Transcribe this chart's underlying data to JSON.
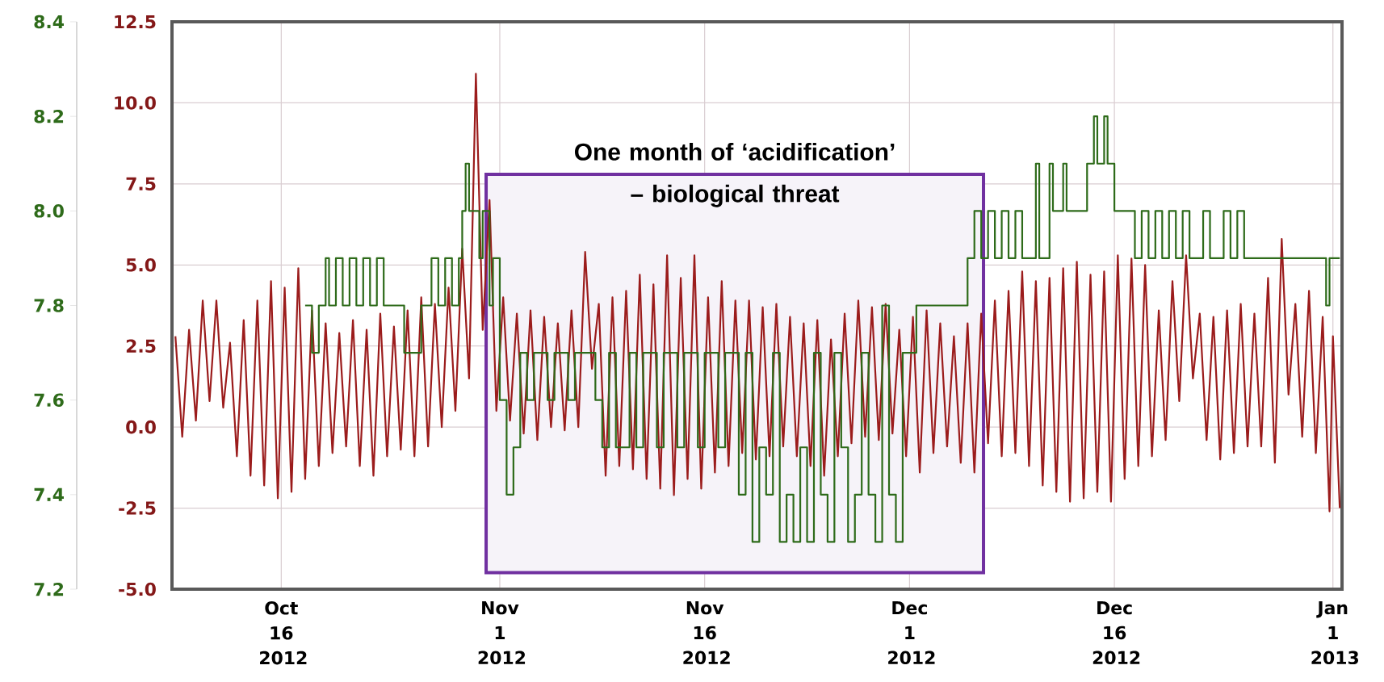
{
  "chart_data": {
    "type": "line",
    "grid": true,
    "xlim": [
      "2012-10-08",
      "2013-01-01T16:00"
    ],
    "xticks": [
      {
        "value": "2012-10-16",
        "label": "Oct 16 2012"
      },
      {
        "value": "2012-11-01",
        "label": "Nov 1 2012"
      },
      {
        "value": "2012-11-16",
        "label": "Nov 16 2012"
      },
      {
        "value": "2012-12-01",
        "label": "Dec 1 2012"
      },
      {
        "value": "2012-12-16",
        "label": "Dec 16 2012"
      },
      {
        "value": "2013-01-01",
        "label": "Jan 1 2013"
      }
    ],
    "ylim": [
      -5,
      12.5
    ],
    "yticks": [
      {
        "value": -5,
        "label": "-5.0"
      },
      -2.5,
      {
        "value": 0,
        "label": "0.0"
      },
      2.5,
      {
        "value": 5,
        "label": "5.0"
      },
      7.5,
      {
        "value": 10,
        "label": "10.0"
      },
      12.5
    ],
    "y2lim": [
      7.2,
      8.4
    ],
    "y2ticks": [
      7.2,
      7.4,
      7.6,
      7.8,
      {
        "value": 8,
        "label": "8.0"
      },
      8.2,
      8.4
    ],
    "bands": [
      {
        "axis": "x",
        "from": "2012-10-31",
        "to": "2012-12-06T10:00",
        "label": "One month of ‘acidification’ – biological threat",
        "color": "#7030a0"
      }
    ],
    "series": [
      {
        "color": "#9b1c1c",
        "x": [
          "2012-10-08T06:00",
          "2012-10-08T18:00",
          "2012-10-09T06:00",
          "2012-10-09T18:00",
          "2012-10-10T06:00",
          "2012-10-10T18:00",
          "2012-10-11T06:00",
          "2012-10-11T18:00",
          "2012-10-12T06:00",
          "2012-10-12T18:00",
          "2012-10-13T06:00",
          "2012-10-13T18:00",
          "2012-10-14T06:00",
          "2012-10-14T18:00",
          "2012-10-15T06:00",
          "2012-10-15T18:00",
          "2012-10-16T06:00",
          "2012-10-16T18:00",
          "2012-10-17T06:00",
          "2012-10-17T18:00",
          "2012-10-18T06:00",
          "2012-10-18T18:00",
          "2012-10-19T06:00",
          "2012-10-19T18:00",
          "2012-10-20T06:00",
          "2012-10-20T18:00",
          "2012-10-21T06:00",
          "2012-10-21T18:00",
          "2012-10-22T06:00",
          "2012-10-22T18:00",
          "2012-10-23T06:00",
          "2012-10-23T18:00",
          "2012-10-24T06:00",
          "2012-10-24T18:00",
          "2012-10-25T06:00",
          "2012-10-25T18:00",
          "2012-10-26T06:00",
          "2012-10-26T18:00",
          "2012-10-27T06:00",
          "2012-10-27T18:00",
          "2012-10-28T06:00",
          "2012-10-28T18:00",
          "2012-10-29T06:00",
          "2012-10-29T18:00",
          "2012-10-30T06:00",
          "2012-10-30T18:00",
          "2012-10-31T06:00",
          "2012-10-31T18:00",
          "2012-11-01T06:00",
          "2012-11-01T18:00",
          "2012-11-02T06:00",
          "2012-11-02T18:00",
          "2012-11-03T06:00",
          "2012-11-03T18:00",
          "2012-11-04T06:00",
          "2012-11-04T18:00",
          "2012-11-05T06:00",
          "2012-11-05T18:00",
          "2012-11-06T06:00",
          "2012-11-06T18:00",
          "2012-11-07T06:00",
          "2012-11-07T18:00",
          "2012-11-08T06:00",
          "2012-11-08T18:00",
          "2012-11-09T06:00",
          "2012-11-09T18:00",
          "2012-11-10T06:00",
          "2012-11-10T18:00",
          "2012-11-11T06:00",
          "2012-11-11T18:00",
          "2012-11-12T06:00",
          "2012-11-12T18:00",
          "2012-11-13T06:00",
          "2012-11-13T18:00",
          "2012-11-14T06:00",
          "2012-11-14T18:00",
          "2012-11-15T06:00",
          "2012-11-15T18:00",
          "2012-11-16T06:00",
          "2012-11-16T18:00",
          "2012-11-17T06:00",
          "2012-11-17T18:00",
          "2012-11-18T06:00",
          "2012-11-18T18:00",
          "2012-11-19T06:00",
          "2012-11-19T18:00",
          "2012-11-20T06:00",
          "2012-11-20T18:00",
          "2012-11-21T06:00",
          "2012-11-21T18:00",
          "2012-11-22T06:00",
          "2012-11-22T18:00",
          "2012-11-23T06:00",
          "2012-11-23T18:00",
          "2012-11-24T06:00",
          "2012-11-24T18:00",
          "2012-11-25T06:00",
          "2012-11-25T18:00",
          "2012-11-26T06:00",
          "2012-11-26T18:00",
          "2012-11-27T06:00",
          "2012-11-27T18:00",
          "2012-11-28T06:00",
          "2012-11-28T18:00",
          "2012-11-29T06:00",
          "2012-11-29T18:00",
          "2012-11-30T06:00",
          "2012-11-30T18:00",
          "2012-12-01T06:00",
          "2012-12-01T18:00",
          "2012-12-02T06:00",
          "2012-12-02T18:00",
          "2012-12-03T06:00",
          "2012-12-03T18:00",
          "2012-12-04T06:00",
          "2012-12-04T18:00",
          "2012-12-05T06:00",
          "2012-12-05T18:00",
          "2012-12-06T06:00",
          "2012-12-06T18:00",
          "2012-12-07T06:00",
          "2012-12-07T18:00",
          "2012-12-08T06:00",
          "2012-12-08T18:00",
          "2012-12-09T06:00",
          "2012-12-09T18:00",
          "2012-12-10T06:00",
          "2012-12-10T18:00",
          "2012-12-11T06:00",
          "2012-12-11T18:00",
          "2012-12-12T06:00",
          "2012-12-12T18:00",
          "2012-12-13T06:00",
          "2012-12-13T18:00",
          "2012-12-14T06:00",
          "2012-12-14T18:00",
          "2012-12-15T06:00",
          "2012-12-15T18:00",
          "2012-12-16T06:00",
          "2012-12-16T18:00",
          "2012-12-17T06:00",
          "2012-12-17T18:00",
          "2012-12-18T06:00",
          "2012-12-18T18:00",
          "2012-12-19T06:00",
          "2012-12-19T18:00",
          "2012-12-20T06:00",
          "2012-12-20T18:00",
          "2012-12-21T06:00",
          "2012-12-21T18:00",
          "2012-12-22T06:00",
          "2012-12-22T18:00",
          "2012-12-23T06:00",
          "2012-12-23T18:00",
          "2012-12-24T06:00",
          "2012-12-24T18:00",
          "2012-12-25T06:00",
          "2012-12-25T18:00",
          "2012-12-26T06:00",
          "2012-12-26T18:00",
          "2012-12-27T06:00",
          "2012-12-27T18:00",
          "2012-12-28T06:00",
          "2012-12-28T18:00",
          "2012-12-29T06:00",
          "2012-12-29T18:00",
          "2012-12-30T06:00",
          "2012-12-30T18:00",
          "2012-12-31T06:00",
          "2012-12-31T18:00",
          "2013-01-01T00:00",
          "2013-01-01T12:00"
        ],
        "values": [
          2.8,
          -0.3,
          3.0,
          0.2,
          3.9,
          0.8,
          3.9,
          0.6,
          2.6,
          -0.9,
          3.3,
          -1.5,
          3.9,
          -1.8,
          4.5,
          -2.2,
          4.3,
          -2.0,
          4.9,
          -1.6,
          3.6,
          -1.2,
          3.2,
          -0.8,
          2.9,
          -0.6,
          3.3,
          -1.2,
          3.0,
          -1.5,
          3.5,
          -0.9,
          3.1,
          -0.7,
          3.6,
          -0.9,
          4.0,
          -0.6,
          3.8,
          0.0,
          4.3,
          0.5,
          5.5,
          1.5,
          10.9,
          3.0,
          7.0,
          0.5,
          4.0,
          0.2,
          3.5,
          -0.2,
          3.6,
          -0.4,
          3.4,
          0.0,
          3.2,
          -0.1,
          3.6,
          0.0,
          5.4,
          1.8,
          3.8,
          -1.5,
          4.0,
          -1.2,
          4.2,
          -1.3,
          4.7,
          -1.6,
          4.4,
          -1.9,
          5.3,
          -2.1,
          4.6,
          -1.6,
          5.3,
          -1.9,
          4.0,
          -1.4,
          4.5,
          -1.2,
          3.9,
          -0.8,
          3.9,
          -1.0,
          3.7,
          -0.9,
          3.8,
          -0.6,
          3.4,
          -0.9,
          3.2,
          -1.2,
          3.3,
          -1.5,
          2.7,
          -0.9,
          3.5,
          -0.5,
          3.9,
          -0.3,
          3.7,
          -0.4,
          3.8,
          -0.2,
          3.0,
          -0.9,
          3.4,
          -1.4,
          3.6,
          -0.8,
          3.2,
          -0.6,
          2.8,
          -1.1,
          3.2,
          -1.4,
          3.5,
          -0.5,
          3.9,
          -0.9,
          4.2,
          -0.8,
          4.8,
          -1.2,
          4.5,
          -1.8,
          4.6,
          -2.0,
          4.9,
          -2.3,
          5.1,
          -2.2,
          4.7,
          -2.0,
          4.8,
          -2.3,
          5.3,
          -1.6,
          5.2,
          -1.2,
          5.0,
          -0.9,
          3.6,
          -0.4,
          4.5,
          0.8,
          5.3,
          1.5,
          3.5,
          -0.4,
          3.4,
          -1.0,
          3.6,
          -0.8,
          3.8,
          -0.6,
          3.5,
          -0.6,
          4.6,
          -1.1,
          5.8,
          1.0,
          3.8,
          -0.3,
          4.2,
          -0.8,
          3.4,
          -2.6,
          2.8,
          -2.5
        ]
      },
      {
        "color": "#2e6b1a",
        "type": "step",
        "axis": "y2",
        "x": [
          "2012-10-17T18:00",
          "2012-10-18T06:00",
          "2012-10-18T18:00",
          "2012-10-19T06:00",
          "2012-10-19T12:00",
          "2012-10-20T00:00",
          "2012-10-20T12:00",
          "2012-10-21T00:00",
          "2012-10-21T12:00",
          "2012-10-22T00:00",
          "2012-10-22T12:00",
          "2012-10-23T00:00",
          "2012-10-23T12:00",
          "2012-10-25T00:00",
          "2012-10-26T06:00",
          "2012-10-27T00:00",
          "2012-10-27T12:00",
          "2012-10-28T00:00",
          "2012-10-28T12:00",
          "2012-10-29T00:00",
          "2012-10-29T06:00",
          "2012-10-29T12:00",
          "2012-10-29T18:00",
          "2012-10-30T12:00",
          "2012-10-30T18:00",
          "2012-10-31T06:00",
          "2012-10-31T12:00",
          "2012-11-01T00:00",
          "2012-11-01T12:00",
          "2012-11-02T00:00",
          "2012-11-02T12:00",
          "2012-11-03T00:00",
          "2012-11-03T12:00",
          "2012-11-04T12:00",
          "2012-11-05T00:00",
          "2012-11-06T00:00",
          "2012-11-06T12:00",
          "2012-11-08T00:00",
          "2012-11-08T12:00",
          "2012-11-09T00:00",
          "2012-11-09T12:00",
          "2012-11-10T12:00",
          "2012-11-11T00:00",
          "2012-11-11T12:00",
          "2012-11-12T12:00",
          "2012-11-13T00:00",
          "2012-11-14T00:00",
          "2012-11-14T12:00",
          "2012-11-15T12:00",
          "2012-11-16T00:00",
          "2012-11-17T00:00",
          "2012-11-17T12:00",
          "2012-11-18T12:00",
          "2012-11-19T00:00",
          "2012-11-19T12:00",
          "2012-11-20T00:00",
          "2012-11-20T12:00",
          "2012-11-21T00:00",
          "2012-11-21T12:00",
          "2012-11-22T00:00",
          "2012-11-22T12:00",
          "2012-11-23T00:00",
          "2012-11-23T12:00",
          "2012-11-24T00:00",
          "2012-11-24T12:00",
          "2012-11-25T00:00",
          "2012-11-25T12:00",
          "2012-11-26T00:00",
          "2012-11-26T12:00",
          "2012-11-27T00:00",
          "2012-11-27T12:00",
          "2012-11-28T00:00",
          "2012-11-28T12:00",
          "2012-11-29T00:00",
          "2012-11-29T12:00",
          "2012-11-30T00:00",
          "2012-11-30T12:00",
          "2012-12-01T12:00",
          "2012-12-05T06:00",
          "2012-12-05T18:00",
          "2012-12-06T06:00",
          "2012-12-06T18:00",
          "2012-12-07T06:00",
          "2012-12-07T18:00",
          "2012-12-08T06:00",
          "2012-12-08T18:00",
          "2012-12-09T06:00",
          "2012-12-10T06:00",
          "2012-12-10T12:00",
          "2012-12-11T06:00",
          "2012-12-11T12:00",
          "2012-12-12T06:00",
          "2012-12-12T12:00",
          "2012-12-14T00:00",
          "2012-12-14T12:00",
          "2012-12-14T18:00",
          "2012-12-15T06:00",
          "2012-12-15T12:00",
          "2012-12-16T00:00",
          "2012-12-17T12:00",
          "2012-12-18T00:00",
          "2012-12-18T12:00",
          "2012-12-19T00:00",
          "2012-12-19T12:00",
          "2012-12-20T00:00",
          "2012-12-20T12:00",
          "2012-12-21T00:00",
          "2012-12-21T12:00",
          "2012-12-22T12:00",
          "2012-12-23T00:00",
          "2012-12-24T00:00",
          "2012-12-24T12:00",
          "2012-12-25T00:00",
          "2012-12-25T12:00",
          "2012-12-31T12:00",
          "2012-12-31T18:00",
          "2013-01-01T12:00"
        ],
        "values": [
          7.8,
          7.7,
          7.8,
          7.9,
          7.8,
          7.9,
          7.8,
          7.9,
          7.8,
          7.9,
          7.8,
          7.9,
          7.8,
          7.7,
          7.8,
          7.9,
          7.8,
          7.9,
          7.8,
          7.9,
          8.0,
          8.1,
          8.0,
          7.9,
          8.0,
          7.8,
          7.9,
          7.6,
          7.4,
          7.5,
          7.7,
          7.6,
          7.7,
          7.6,
          7.7,
          7.6,
          7.7,
          7.6,
          7.5,
          7.7,
          7.5,
          7.7,
          7.5,
          7.7,
          7.5,
          7.7,
          7.5,
          7.7,
          7.5,
          7.7,
          7.5,
          7.7,
          7.4,
          7.7,
          7.3,
          7.5,
          7.4,
          7.7,
          7.3,
          7.4,
          7.3,
          7.5,
          7.3,
          7.7,
          7.4,
          7.3,
          7.7,
          7.5,
          7.3,
          7.4,
          7.7,
          7.4,
          7.3,
          7.8,
          7.4,
          7.3,
          7.7,
          7.8,
          7.9,
          8.0,
          7.9,
          8.0,
          7.9,
          8.0,
          7.9,
          8.0,
          7.9,
          8.1,
          7.9,
          8.1,
          8.0,
          8.1,
          8.0,
          8.1,
          8.2,
          8.1,
          8.2,
          8.1,
          8.0,
          7.9,
          8.0,
          7.9,
          8.0,
          7.9,
          8.0,
          7.9,
          8.0,
          7.9,
          8.0,
          7.9,
          8.0,
          7.9,
          8.0,
          7.9,
          7.8,
          7.9,
          7.9
        ]
      }
    ]
  }
}
